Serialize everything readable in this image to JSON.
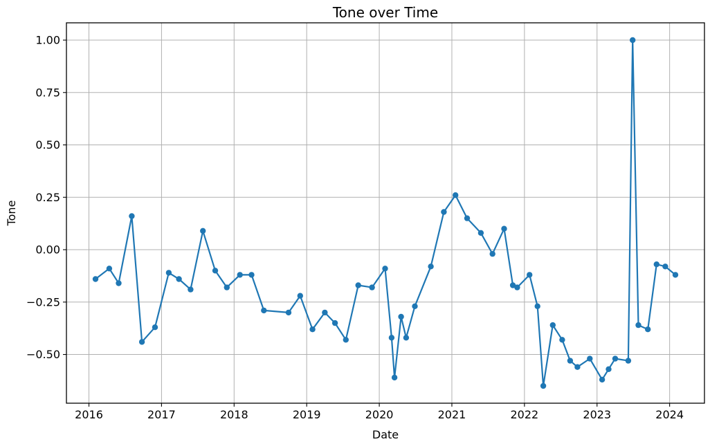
{
  "colors": {
    "line": "#1f77b4",
    "grid": "#b0b0b0",
    "spine": "#000000",
    "text": "#000000",
    "background": "#ffffff"
  },
  "chart_data": {
    "type": "line",
    "title": "Tone over Time",
    "xlabel": "Date",
    "ylabel": "Tone",
    "grid": true,
    "legend": "none",
    "marker": "circle",
    "xlim": [
      2015.69,
      2024.48
    ],
    "ylim": [
      -0.7325,
      1.0825
    ],
    "xticks": {
      "values": [
        2016,
        2017,
        2018,
        2019,
        2020,
        2021,
        2022,
        2023,
        2024
      ],
      "labels": [
        "2016",
        "2017",
        "2018",
        "2019",
        "2020",
        "2021",
        "2022",
        "2023",
        "2024"
      ]
    },
    "yticks": {
      "values": [
        -0.5,
        -0.25,
        0.0,
        0.25,
        0.5,
        0.75,
        1.0
      ],
      "labels": [
        "−0.50",
        "−0.25",
        "0.00",
        "0.25",
        "0.50",
        "0.75",
        "1.00"
      ]
    },
    "series": [
      {
        "name": "Tone",
        "x": [
          2016.09,
          2016.28,
          2016.41,
          2016.59,
          2016.73,
          2016.91,
          2017.1,
          2017.24,
          2017.4,
          2017.57,
          2017.74,
          2017.9,
          2018.08,
          2018.24,
          2018.41,
          2018.75,
          2018.91,
          2019.08,
          2019.25,
          2019.39,
          2019.54,
          2019.71,
          2019.9,
          2020.08,
          2020.17,
          2020.21,
          2020.3,
          2020.37,
          2020.49,
          2020.71,
          2020.89,
          2021.05,
          2021.21,
          2021.4,
          2021.56,
          2021.72,
          2021.84,
          2021.9,
          2022.07,
          2022.18,
          2022.26,
          2022.39,
          2022.52,
          2022.63,
          2022.73,
          2022.9,
          2023.07,
          2023.16,
          2023.25,
          2023.43,
          2023.49,
          2023.57,
          2023.7,
          2023.82,
          2023.94,
          2024.08
        ],
        "y": [
          -0.14,
          -0.09,
          -0.16,
          0.16,
          -0.44,
          -0.37,
          -0.11,
          -0.14,
          -0.19,
          0.09,
          -0.1,
          -0.18,
          -0.12,
          -0.12,
          -0.29,
          -0.3,
          -0.22,
          -0.38,
          -0.3,
          -0.35,
          -0.43,
          -0.17,
          -0.18,
          -0.09,
          -0.42,
          -0.61,
          -0.32,
          -0.42,
          -0.27,
          -0.08,
          0.18,
          0.26,
          0.15,
          0.08,
          -0.02,
          0.1,
          -0.17,
          -0.18,
          -0.12,
          -0.27,
          -0.65,
          -0.36,
          -0.43,
          -0.53,
          -0.56,
          -0.52,
          -0.62,
          -0.57,
          -0.52,
          -0.53,
          1.0,
          -0.36,
          -0.38,
          -0.07,
          -0.08,
          -0.12
        ]
      }
    ]
  }
}
